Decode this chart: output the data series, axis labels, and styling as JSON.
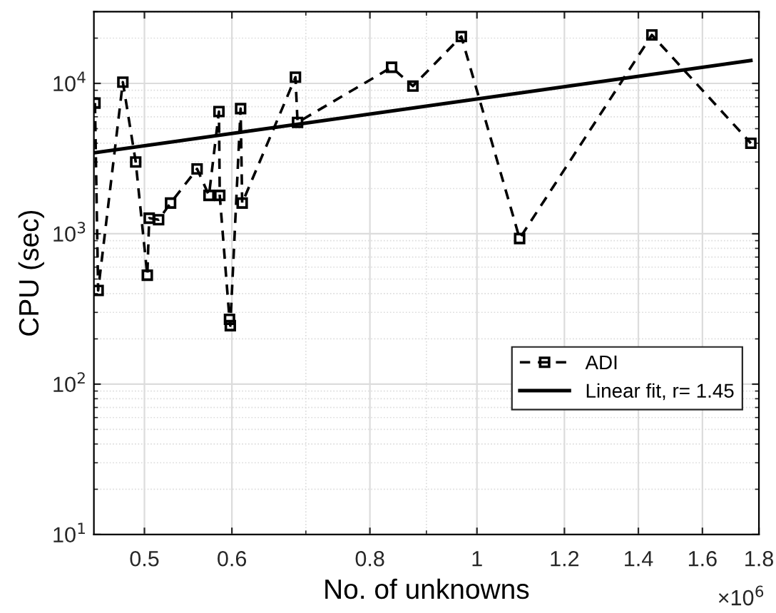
{
  "chart_data": {
    "type": "line",
    "xlabel": "No. of unknowns",
    "ylabel": "CPU (sec)",
    "log": "xy",
    "grid": true,
    "legend": "right",
    "xlim": [
      0.45,
      1.8
    ],
    "xticks": [
      0.5,
      0.6,
      0.8,
      1,
      1.2,
      1.4,
      1.6,
      1.8
    ],
    "ylim": [
      10,
      30000
    ],
    "yticks": [
      {
        "value": 10,
        "label": "10$^{1}$"
      },
      {
        "value": 100,
        "label": "10$^{2}$"
      },
      {
        "value": 1000,
        "label": "10$^{3}$"
      },
      {
        "value": 10000,
        "label": "10$^{4}$"
      }
    ],
    "annotations": [
      "×10$^{6}$"
    ],
    "series": [
      {
        "name": "ADI",
        "color": "#000000",
        "marker": "square",
        "line_style": "dashed",
        "x": [
          0.451,
          0.454,
          0.478,
          0.491,
          0.503,
          0.505,
          0.515,
          0.528,
          0.558,
          0.572,
          0.584,
          0.585,
          0.597,
          0.598,
          0.611,
          0.613,
          0.685,
          0.688,
          0.837,
          0.875,
          0.968,
          1.093,
          1.44,
          1.77
        ],
        "values": [
          7400,
          420,
          10200,
          3000,
          530,
          1270,
          1240,
          1600,
          2700,
          1800,
          6500,
          1800,
          270,
          245,
          6800,
          1600,
          11000,
          5500,
          12800,
          9600,
          20500,
          930,
          21000,
          4000
        ]
      },
      {
        "name": "Linear fit, r= 1.45",
        "type": "line",
        "color": "#000000",
        "marker": "none",
        "line_style": "solid",
        "x": [
          0.451,
          1.77
        ],
        "values": [
          3460,
          14200
        ]
      }
    ]
  }
}
